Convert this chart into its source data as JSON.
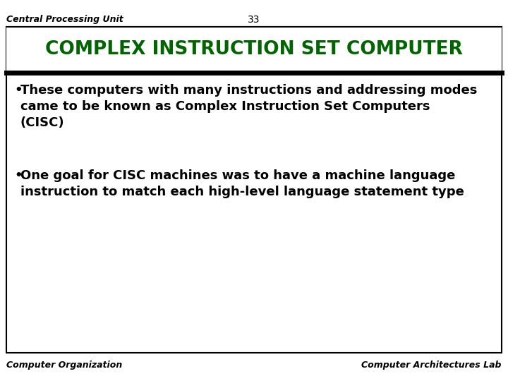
{
  "slide_title": "COMPLEX INSTRUCTION SET COMPUTER",
  "page_label": "Central Processing Unit",
  "page_number": "33",
  "title_color": "#006400",
  "border_color": "#000000",
  "separator_color": "#000000",
  "bullet1_line1": "These computers with many instructions and addressing modes",
  "bullet1_line2": "came to be known as Complex Instruction Set Computers",
  "bullet1_line3": "(CISC)",
  "bullet2_line1": "One goal for CISC machines was to have a machine language",
  "bullet2_line2": "instruction to match each high-level language statement type",
  "footer_left": "Computer Organization",
  "footer_right": "Computer Architectures Lab",
  "bg_color": "#ffffff",
  "text_color": "#000000",
  "bullet_fontsize": 13,
  "title_fontsize": 19,
  "header_fontsize": 9,
  "footer_fontsize": 9
}
